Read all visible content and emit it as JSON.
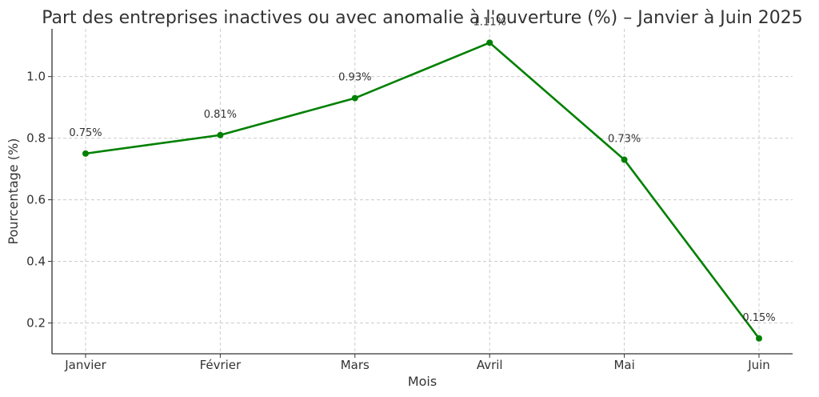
{
  "chart_data": {
    "type": "line",
    "title": "Part des entreprises inactives ou avec anomalie à l'ouverture (%) – Janvier à Juin 2025",
    "xlabel": "Mois",
    "ylabel": "Pourcentage (%)",
    "categories": [
      "Janvier",
      "Février",
      "Mars",
      "Avril",
      "Mai",
      "Juin"
    ],
    "series": [
      {
        "values": [
          0.75,
          0.81,
          0.93,
          1.11,
          0.73,
          0.15
        ],
        "color": "#008000",
        "marker": "circle"
      }
    ],
    "data_labels": [
      "0.75%",
      "0.81%",
      "0.93%",
      "1.11%",
      "0.73%",
      "0.15%"
    ],
    "ylim": [
      0.1,
      1.155
    ],
    "yticks": [
      0.2,
      0.4,
      0.6,
      0.8,
      1.0
    ],
    "ytick_labels": [
      "0.2",
      "0.4",
      "0.6",
      "0.8",
      "1.0"
    ],
    "grid": true
  }
}
